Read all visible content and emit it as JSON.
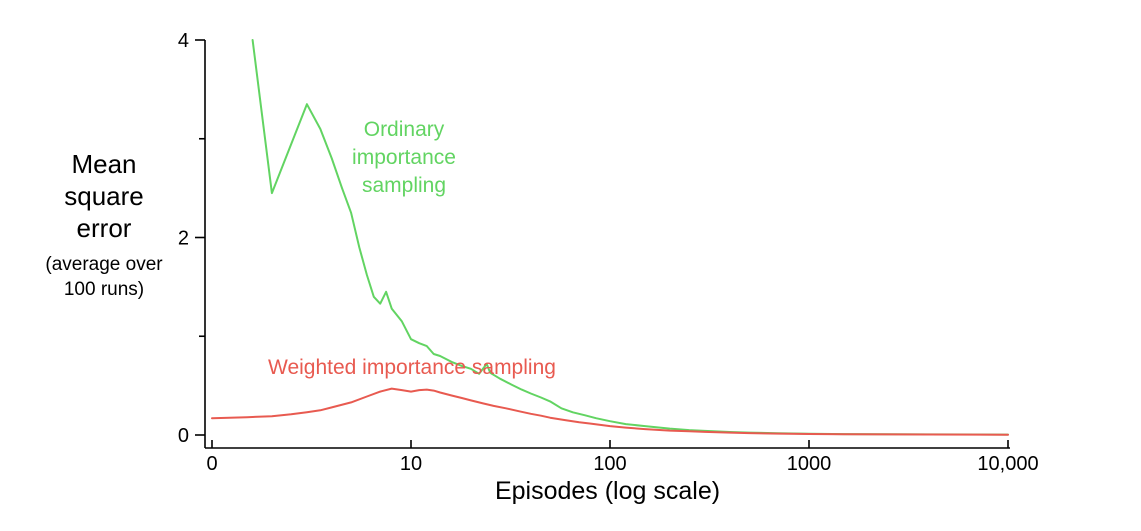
{
  "figure": {
    "background": "#ffffff",
    "axis_color": "#000000"
  },
  "annotations": {
    "ordinary": {
      "lines": [
        "Ordinary",
        "importance",
        "sampling"
      ],
      "color": "#62d462"
    },
    "weighted": {
      "text": "Weighted importance sampling",
      "color": "#e85a50"
    }
  },
  "chart_data": {
    "type": "line",
    "title": "",
    "xlabel": "Episodes (log scale)",
    "ylabel": "Mean square error (average over 100 runs)",
    "x_scale": "log",
    "xlim": [
      1,
      10000
    ],
    "ylim": [
      0,
      4
    ],
    "grid": false,
    "legend": "inline-annotations",
    "x_axis": {
      "title": "Episodes (log scale)",
      "scale": "log",
      "ticks": [
        {
          "value": 1,
          "label": "0"
        },
        {
          "value": 10,
          "label": "10"
        },
        {
          "value": 100,
          "label": "100"
        },
        {
          "value": 1000,
          "label": "1000"
        },
        {
          "value": 10000,
          "label": "10,000"
        }
      ]
    },
    "y_axis": {
      "title_lines": [
        "Mean",
        "square",
        "error"
      ],
      "subtitle_lines": [
        "(average over",
        "100 runs)"
      ],
      "ticks": [
        {
          "value": 0,
          "label": "0"
        },
        {
          "value": 1,
          "label": ""
        },
        {
          "value": 2,
          "label": "2"
        },
        {
          "value": 3,
          "label": ""
        },
        {
          "value": 4,
          "label": "4"
        }
      ]
    },
    "series": [
      {
        "id": "ordinary-importance-sampling",
        "name": "Ordinary importance sampling",
        "color": "#62d462",
        "points": [
          [
            1.6,
            4.0
          ],
          [
            2,
            2.45
          ],
          [
            3,
            3.35
          ],
          [
            3.5,
            3.1
          ],
          [
            4,
            2.8
          ],
          [
            4.5,
            2.5
          ],
          [
            5,
            2.25
          ],
          [
            5.5,
            1.9
          ],
          [
            6,
            1.62
          ],
          [
            6.5,
            1.4
          ],
          [
            7,
            1.33
          ],
          [
            7.5,
            1.45
          ],
          [
            8,
            1.28
          ],
          [
            9,
            1.15
          ],
          [
            10,
            0.97
          ],
          [
            11,
            0.93
          ],
          [
            12,
            0.9
          ],
          [
            13,
            0.82
          ],
          [
            14,
            0.8
          ],
          [
            16,
            0.74
          ],
          [
            18,
            0.7
          ],
          [
            20,
            0.67
          ],
          [
            22,
            0.62
          ],
          [
            24,
            0.72
          ],
          [
            25,
            0.63
          ],
          [
            28,
            0.57
          ],
          [
            32,
            0.51
          ],
          [
            36,
            0.46
          ],
          [
            40,
            0.42
          ],
          [
            45,
            0.38
          ],
          [
            50,
            0.34
          ],
          [
            57,
            0.27
          ],
          [
            65,
            0.23
          ],
          [
            75,
            0.2
          ],
          [
            85,
            0.17
          ],
          [
            100,
            0.14
          ],
          [
            120,
            0.11
          ],
          [
            150,
            0.09
          ],
          [
            200,
            0.065
          ],
          [
            250,
            0.05
          ],
          [
            300,
            0.042
          ],
          [
            400,
            0.03
          ],
          [
            500,
            0.024
          ],
          [
            700,
            0.017
          ],
          [
            1000,
            0.012
          ],
          [
            1500,
            0.009
          ],
          [
            2500,
            0.007
          ],
          [
            4000,
            0.006
          ],
          [
            7000,
            0.005
          ],
          [
            10000,
            0.004
          ]
        ]
      },
      {
        "id": "weighted-importance-sampling",
        "name": "Weighted importance sampling",
        "color": "#e85a50",
        "points": [
          [
            1,
            0.17
          ],
          [
            1.5,
            0.18
          ],
          [
            2,
            0.19
          ],
          [
            2.5,
            0.21
          ],
          [
            3,
            0.23
          ],
          [
            3.5,
            0.25
          ],
          [
            4,
            0.28
          ],
          [
            5,
            0.33
          ],
          [
            6,
            0.39
          ],
          [
            7,
            0.44
          ],
          [
            8,
            0.47
          ],
          [
            9,
            0.455
          ],
          [
            10,
            0.44
          ],
          [
            11,
            0.455
          ],
          [
            12,
            0.46
          ],
          [
            13,
            0.45
          ],
          [
            14,
            0.43
          ],
          [
            16,
            0.4
          ],
          [
            18,
            0.375
          ],
          [
            20,
            0.35
          ],
          [
            23,
            0.32
          ],
          [
            26,
            0.295
          ],
          [
            30,
            0.27
          ],
          [
            35,
            0.24
          ],
          [
            40,
            0.215
          ],
          [
            45,
            0.195
          ],
          [
            50,
            0.175
          ],
          [
            60,
            0.15
          ],
          [
            70,
            0.13
          ],
          [
            80,
            0.115
          ],
          [
            100,
            0.09
          ],
          [
            120,
            0.075
          ],
          [
            150,
            0.06
          ],
          [
            200,
            0.045
          ],
          [
            250,
            0.037
          ],
          [
            300,
            0.031
          ],
          [
            400,
            0.024
          ],
          [
            500,
            0.019
          ],
          [
            700,
            0.014
          ],
          [
            1000,
            0.01
          ],
          [
            1500,
            0.008
          ],
          [
            2500,
            0.006
          ],
          [
            4000,
            0.005
          ],
          [
            7000,
            0.004
          ],
          [
            10000,
            0.003
          ]
        ]
      }
    ]
  }
}
